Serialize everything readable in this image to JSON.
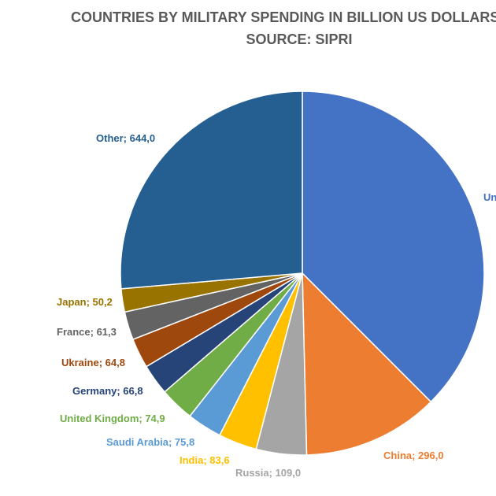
{
  "chart_data": {
    "type": "pie",
    "title": "COUNTRIES BY MILITARY SPENDING IN BILLION US DOLLARS IN",
    "subtitle": "SOURCE: SIPRI",
    "slices": [
      {
        "name": "Un",
        "value": 916.0,
        "label": "Un",
        "color": "#4472C4"
      },
      {
        "name": "China",
        "value": 296.0,
        "label": "China; 296,0",
        "color": "#ED7D31"
      },
      {
        "name": "Russia",
        "value": 109.0,
        "label": "Russia; 109,0",
        "color": "#A5A5A5"
      },
      {
        "name": "India",
        "value": 83.6,
        "label": "India; 83,6",
        "color": "#FFC000"
      },
      {
        "name": "Saudi Arabia",
        "value": 75.8,
        "label": "Saudi Arabia; 75,8",
        "color": "#5B9BD5"
      },
      {
        "name": "United Kingdom",
        "value": 74.9,
        "label": "United Kingdom; 74,9",
        "color": "#70AD47"
      },
      {
        "name": "Germany",
        "value": 66.8,
        "label": "Germany; 66,8",
        "color": "#264478"
      },
      {
        "name": "Ukraine",
        "value": 64.8,
        "label": "Ukraine; 64,8",
        "color": "#9E480E"
      },
      {
        "name": "France",
        "value": 61.3,
        "label": "France; 61,3",
        "color": "#636363"
      },
      {
        "name": "Japan",
        "value": 50.2,
        "label": "Japan; 50,2",
        "color": "#997300"
      },
      {
        "name": "Other",
        "value": 644.0,
        "label": "Other; 644,0",
        "color": "#255E91"
      }
    ]
  }
}
